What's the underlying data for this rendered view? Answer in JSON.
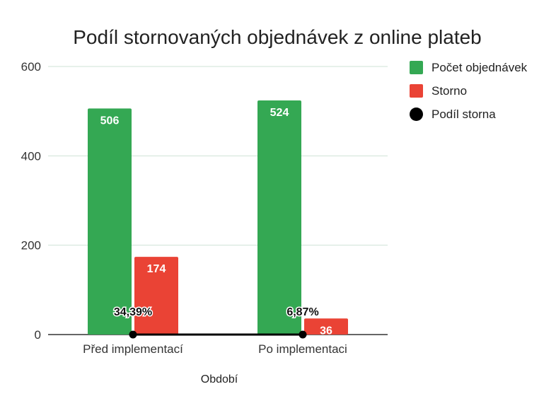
{
  "chart_data": {
    "type": "bar",
    "title": "Podíl stornovaných objednávek z online plateb",
    "xlabel": "Období",
    "ylabel": "",
    "ylim": [
      0,
      600
    ],
    "yticks": [
      "0",
      "200",
      "400",
      "600"
    ],
    "categories": [
      "Před implementací",
      "Po implementaci"
    ],
    "series": [
      {
        "name": "Počet objednávek",
        "kind": "bar",
        "color": "#34a853",
        "values": [
          506,
          524
        ],
        "labels": [
          "506",
          "524"
        ]
      },
      {
        "name": "Storno",
        "kind": "bar",
        "color": "#ea4335",
        "values": [
          174,
          36
        ],
        "labels": [
          "174",
          "36"
        ]
      },
      {
        "name": "Podíl storna",
        "kind": "line",
        "color": "#000000",
        "values": [
          0.3439,
          0.0687
        ],
        "labels": [
          "34,39%",
          "6,87%"
        ]
      }
    ],
    "grid": true,
    "legend_position": "right"
  }
}
